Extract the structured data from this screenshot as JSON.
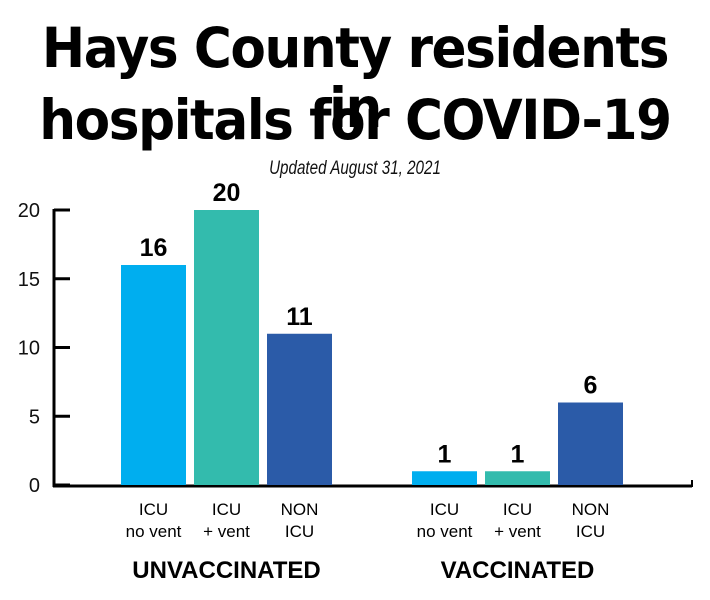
{
  "chart_data": {
    "type": "bar",
    "title": "Hays County residents in hospitals for COVID-19",
    "title_lines": [
      "Hays County residents in",
      "hospitals for COVID-19"
    ],
    "subtitle": "Updated August 31, 2021",
    "xlabel": "",
    "ylabel": "",
    "ylim": [
      0,
      20
    ],
    "yticks": [
      0,
      5,
      10,
      15,
      20
    ],
    "grid": false,
    "groups": [
      {
        "name": "UNVACCINATED",
        "bars": [
          {
            "category": [
              "ICU",
              "no vent"
            ],
            "value": 16,
            "color": "#00AEEF"
          },
          {
            "category": [
              "ICU",
              "+ vent"
            ],
            "value": 20,
            "color": "#33BBAD"
          },
          {
            "category": [
              "NON",
              "ICU"
            ],
            "value": 11,
            "color": "#2B5BA8"
          }
        ]
      },
      {
        "name": "VACCINATED",
        "bars": [
          {
            "category": [
              "ICU",
              "no vent"
            ],
            "value": 1,
            "color": "#00AEEF"
          },
          {
            "category": [
              "ICU",
              "+ vent"
            ],
            "value": 1,
            "color": "#33BBAD"
          },
          {
            "category": [
              "NON",
              "ICU"
            ],
            "value": 6,
            "color": "#2B5BA8"
          }
        ]
      }
    ]
  }
}
